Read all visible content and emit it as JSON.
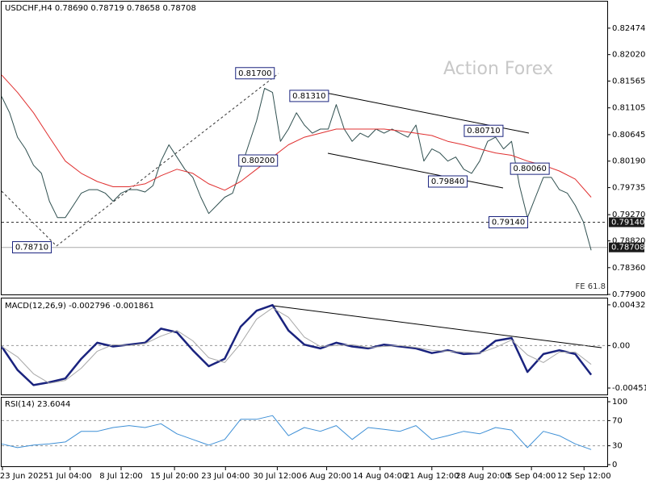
{
  "chart_data": [
    {
      "type": "line",
      "title": "USDCHF,H4  0.78690 0.78719 0.78658 0.78708",
      "watermark": "Action Forex",
      "note": "FE 61.8",
      "xlim": [
        0,
        75
      ],
      "ylim": [
        0.779,
        0.8293
      ],
      "yticks": [
        0.82474,
        {
          "value": 0.8202,
          "label": "0.82020"
        },
        0.81565,
        0.81105,
        0.80645,
        {
          "value": 0.8019,
          "label": "0.80190"
        },
        0.79735,
        {
          "value": 0.7927,
          "label": "0.79270"
        },
        {
          "value": 0.7882,
          "label": "0.78820"
        },
        {
          "value": 0.7836,
          "label": "0.78360"
        },
        {
          "value": 0.779,
          "label": "0.77900"
        }
      ],
      "series": [
        {
          "color": "#2f4f4f",
          "width": 1,
          "x": [
            0,
            1,
            2,
            3,
            4,
            5,
            6,
            7,
            8,
            9,
            10,
            11,
            12,
            13,
            14,
            15,
            16,
            17,
            18,
            19,
            20,
            21,
            22,
            23,
            24,
            25,
            26,
            27,
            28,
            29,
            30,
            31,
            32,
            33,
            34,
            35,
            36,
            37,
            38,
            39,
            40,
            41,
            42,
            43,
            44,
            45,
            46,
            47,
            48,
            49,
            50,
            51,
            52,
            53,
            54,
            55,
            56,
            57,
            58,
            59,
            60,
            61,
            62,
            63,
            64,
            65,
            66,
            67,
            68,
            69,
            70,
            71,
            72,
            73,
            74
          ],
          "values": [
            0.813,
            0.8102,
            0.806,
            0.804,
            0.8012,
            0.7998,
            0.795,
            0.7922,
            0.7922,
            0.7943,
            0.7964,
            0.797,
            0.797,
            0.7964,
            0.795,
            0.7964,
            0.797,
            0.797,
            0.7966,
            0.7977,
            0.8019,
            0.8047,
            0.8026,
            0.8005,
            0.7991,
            0.7957,
            0.7929,
            0.7943,
            0.7957,
            0.7964,
            0.8005,
            0.8047,
            0.8088,
            0.8144,
            0.8137,
            0.8053,
            0.8074,
            0.8102,
            0.8081,
            0.8067,
            0.8074,
            0.8074,
            0.8116,
            0.8074,
            0.8053,
            0.8067,
            0.806,
            0.8074,
            0.8067,
            0.8074,
            0.8067,
            0.806,
            0.8081,
            0.8019,
            0.804,
            0.8033,
            0.8019,
            0.8026,
            0.8005,
            0.7998,
            0.8019,
            0.8053,
            0.806,
            0.804,
            0.8053,
            0.7977,
            0.7922,
            0.7957,
            0.7991,
            0.7991,
            0.797,
            0.7964,
            0.7943,
            0.7915,
            0.7866
          ]
        },
        {
          "color": "#e03030",
          "width": 1,
          "x": [
            0,
            2,
            4,
            6,
            8,
            10,
            12,
            14,
            16,
            18,
            20,
            22,
            24,
            26,
            28,
            30,
            32,
            34,
            36,
            38,
            40,
            42,
            44,
            46,
            48,
            50,
            52,
            54,
            56,
            58,
            60,
            62,
            64,
            66,
            68,
            70,
            72,
            74
          ],
          "values": [
            0.8167,
            0.8137,
            0.8102,
            0.806,
            0.8019,
            0.7998,
            0.7984,
            0.7975,
            0.7975,
            0.798,
            0.7994,
            0.8005,
            0.7998,
            0.798,
            0.7969,
            0.7984,
            0.8005,
            0.8026,
            0.8047,
            0.806,
            0.8067,
            0.8074,
            0.8074,
            0.8074,
            0.8074,
            0.8071,
            0.8067,
            0.8063,
            0.8053,
            0.8047,
            0.804,
            0.8033,
            0.8029,
            0.8019,
            0.8012,
            0.8002,
            0.7988,
            0.7957
          ]
        }
      ],
      "annotations": [
        {
          "x": 31.8,
          "value": 0.817,
          "label": "0.81700"
        },
        {
          "x": 38.6,
          "value": 0.8131,
          "label": "0.81310"
        },
        {
          "x": 60.5,
          "value": 0.8071,
          "label": "0.80710"
        },
        {
          "x": 32.2,
          "value": 0.802,
          "label": "0.80200"
        },
        {
          "x": 66.3,
          "value": 0.8006,
          "label": "0.80060"
        },
        {
          "x": 56,
          "value": 0.7984,
          "label": "0.79840"
        },
        {
          "x": 63.6,
          "value": 0.7914,
          "label": "0.79140"
        },
        {
          "x": 3.8,
          "value": 0.7871,
          "label": "0.78710"
        }
      ],
      "levels": [
        {
          "value": 0.7914,
          "label": "0.79140",
          "dashed": true
        },
        {
          "value": 0.78708,
          "label": "0.78708",
          "dashed": false
        }
      ]
    },
    {
      "type": "line",
      "title": "MACD(12,26,9) -0.002796 -0.001861",
      "xlim": [
        0,
        75
      ],
      "ylim": [
        -0.00528,
        0.005
      ],
      "yticks": [
        0.004325,
        {
          "value": 0,
          "label": "0.00"
        },
        -0.004511
      ],
      "zero_line": true,
      "series": [
        {
          "color": "#1a237e",
          "width": 2.5,
          "x": [
            0,
            2,
            4,
            6,
            8,
            10,
            12,
            14,
            16,
            18,
            20,
            22,
            24,
            26,
            28,
            30,
            32,
            34,
            36,
            38,
            40,
            42,
            44,
            46,
            48,
            50,
            52,
            54,
            56,
            58,
            60,
            62,
            64,
            66,
            68,
            70,
            72,
            74
          ],
          "values": [
            -0.0001,
            -0.0026,
            -0.0042,
            -0.0039,
            -0.0035,
            -0.0014,
            0.0003,
            -0.0001,
            0.0001,
            0.0003,
            0.0018,
            0.0014,
            -0.0005,
            -0.0022,
            -0.0014,
            0.002,
            0.0037,
            0.0043,
            0.0016,
            0.0001,
            -0.0003,
            0.0003,
            -0.0001,
            -0.0003,
            0.0001,
            -0.0001,
            -0.0003,
            -0.0008,
            -0.0005,
            -0.0009,
            -0.0008,
            0.0005,
            0.0008,
            -0.0028,
            -0.0009,
            -0.0005,
            -0.0009,
            -0.0031
          ]
        },
        {
          "color": "#a8a8a8",
          "width": 1,
          "x": [
            0,
            2,
            4,
            6,
            8,
            10,
            12,
            14,
            16,
            18,
            20,
            22,
            24,
            26,
            28,
            30,
            32,
            34,
            36,
            38,
            40,
            42,
            44,
            46,
            48,
            50,
            52,
            54,
            56,
            58,
            60,
            62,
            64,
            66,
            68,
            70,
            72,
            74
          ],
          "values": [
            -0.0001,
            -0.0012,
            -0.003,
            -0.004,
            -0.0037,
            -0.0024,
            -0.0006,
            0.0001,
            0.0,
            0.0002,
            0.001,
            0.0016,
            0.0005,
            -0.0013,
            -0.0018,
            0.0002,
            0.0028,
            0.004,
            0.003,
            0.0009,
            -0.0001,
            0.0,
            0.0001,
            -0.0002,
            -0.0001,
            0.0,
            -0.0002,
            -0.0005,
            -0.0006,
            -0.0007,
            -0.0008,
            -0.0002,
            0.0006,
            -0.001,
            -0.0018,
            -0.0007,
            -0.0007,
            -0.002
          ]
        }
      ]
    },
    {
      "type": "line",
      "title": "RSI(14) 23.6044",
      "xlim": [
        0,
        75
      ],
      "ylim": [
        0,
        100
      ],
      "yticks": [
        100,
        70,
        30,
        0
      ],
      "dashed_ticks": [
        70,
        30
      ],
      "xticks": [
        {
          "value": 0.1,
          "label": "23 Jun 2025"
        },
        {
          "value": 8.6,
          "label": "1 Jul 04:00"
        },
        {
          "value": 15,
          "label": "8 Jul 12:00"
        },
        {
          "value": 21.7,
          "label": "15 Jul 20:00"
        },
        {
          "value": 28.1,
          "label": "23 Jul 04:00"
        },
        {
          "value": 34.6,
          "label": "30 Jul 12:00"
        },
        {
          "value": 40.8,
          "label": "6 Aug 20:00"
        },
        {
          "value": 47.5,
          "label": "14 Aug 04:00"
        },
        {
          "value": 54,
          "label": "21 Aug 12:00"
        },
        {
          "value": 60.4,
          "label": "28 Aug 20:00"
        },
        {
          "value": 66.5,
          "label": "5 Sep 04:00"
        },
        {
          "value": 73.1,
          "label": "12 Sep 12:00"
        }
      ],
      "series": [
        {
          "color": "#3d8fd6",
          "width": 1,
          "x": [
            0,
            2,
            4,
            6,
            8,
            10,
            12,
            14,
            16,
            18,
            20,
            22,
            24,
            26,
            28,
            30,
            32,
            34,
            36,
            38,
            40,
            42,
            44,
            46,
            48,
            50,
            52,
            54,
            56,
            58,
            60,
            62,
            64,
            66,
            68,
            70,
            72,
            74
          ],
          "values": [
            33,
            27,
            31,
            33,
            36,
            53,
            53,
            59,
            62,
            59,
            65,
            49,
            40,
            31,
            40,
            72,
            72,
            78,
            46,
            59,
            53,
            62,
            40,
            59,
            56,
            53,
            62,
            40,
            46,
            53,
            49,
            59,
            55,
            27,
            53,
            46,
            33,
            24
          ]
        }
      ]
    }
  ]
}
